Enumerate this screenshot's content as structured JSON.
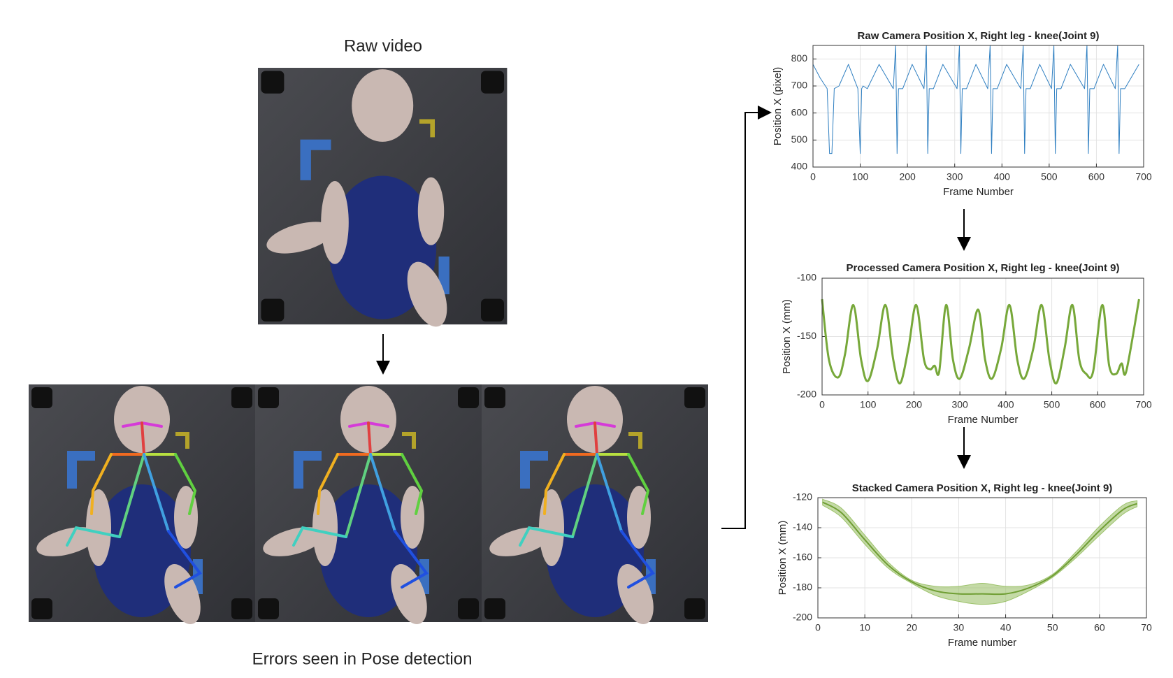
{
  "labels": {
    "raw_video": "Raw video",
    "errors": "Errors seen in Pose detection"
  },
  "chart_data": [
    {
      "type": "line",
      "title": "Raw Camera Position X, Right leg - knee(Joint 9)",
      "x_label": "Frame Number",
      "y_label": "Position X  (pixel)",
      "color": "#2f7fc1",
      "grid": true,
      "xlim": [
        0,
        700
      ],
      "xticks": [
        0,
        100,
        200,
        300,
        400,
        500,
        600,
        700
      ],
      "ylim": [
        400,
        850
      ],
      "yticks": [
        400,
        500,
        600,
        700,
        800
      ],
      "x": [
        0,
        15,
        30,
        35,
        40,
        45,
        55,
        75,
        95,
        100,
        103,
        106,
        115,
        140,
        170,
        175,
        178,
        181,
        190,
        210,
        235,
        240,
        243,
        246,
        255,
        275,
        305,
        310,
        313,
        316,
        325,
        345,
        370,
        375,
        378,
        381,
        390,
        410,
        440,
        445,
        448,
        451,
        460,
        480,
        505,
        510,
        513,
        516,
        525,
        545,
        575,
        580,
        583,
        586,
        595,
        615,
        640,
        645,
        648,
        651,
        660,
        690
      ],
      "values": [
        780,
        730,
        690,
        450,
        450,
        690,
        700,
        780,
        690,
        450,
        690,
        700,
        690,
        780,
        690,
        850,
        450,
        690,
        690,
        780,
        690,
        850,
        450,
        690,
        690,
        780,
        690,
        850,
        450,
        690,
        690,
        780,
        690,
        850,
        450,
        690,
        690,
        780,
        690,
        850,
        450,
        690,
        690,
        780,
        690,
        850,
        450,
        690,
        690,
        780,
        690,
        850,
        450,
        690,
        690,
        780,
        690,
        850,
        450,
        690,
        690,
        780
      ]
    },
    {
      "type": "line",
      "title": "Processed Camera Position X, Right leg - knee(Joint 9)",
      "x_label": "Frame Number",
      "y_label": "Position X  (mm)",
      "color": "#77a83a",
      "grid": true,
      "xlim": [
        0,
        700
      ],
      "xticks": [
        0,
        100,
        200,
        300,
        400,
        500,
        600,
        700
      ],
      "ylim": [
        -200,
        -100
      ],
      "yticks": [
        -200,
        -150,
        -100
      ],
      "x": [
        0,
        15,
        35,
        50,
        68,
        85,
        100,
        120,
        138,
        155,
        170,
        188,
        205,
        222,
        235,
        245,
        255,
        270,
        285,
        300,
        320,
        340,
        355,
        370,
        390,
        408,
        425,
        440,
        460,
        478,
        495,
        510,
        528,
        545,
        560,
        575,
        590,
        610,
        625,
        640,
        652,
        662,
        690
      ],
      "values": [
        -118,
        -170,
        -185,
        -165,
        -123,
        -170,
        -188,
        -160,
        -123,
        -170,
        -190,
        -160,
        -123,
        -170,
        -178,
        -175,
        -180,
        -123,
        -170,
        -186,
        -160,
        -127,
        -170,
        -186,
        -160,
        -123,
        -170,
        -186,
        -160,
        -123,
        -170,
        -190,
        -160,
        -123,
        -170,
        -182,
        -180,
        -123,
        -175,
        -182,
        -173,
        -180,
        -118
      ]
    },
    {
      "type": "line",
      "title": "Stacked Camera Position X, Right leg - knee(Joint 9)",
      "x_label": "Frame number",
      "y_label": "Position X (mm)",
      "color": "#6f9e33",
      "band_color": "#9cc26a",
      "grid": true,
      "xlim": [
        0,
        70
      ],
      "xticks": [
        0,
        10,
        20,
        30,
        40,
        50,
        60,
        70
      ],
      "ylim": [
        -200,
        -120
      ],
      "yticks": [
        -200,
        -180,
        -160,
        -140,
        -120
      ],
      "x": [
        1,
        5,
        10,
        15,
        20,
        25,
        30,
        35,
        40,
        45,
        50,
        55,
        60,
        65,
        68
      ],
      "values": [
        -123,
        -130,
        -148,
        -165,
        -176,
        -182,
        -184,
        -184,
        -184,
        -180,
        -172,
        -158,
        -142,
        -128,
        -124
      ],
      "lower": [
        -125,
        -133,
        -151,
        -167,
        -177,
        -185,
        -189,
        -191,
        -189,
        -182,
        -173,
        -160,
        -145,
        -131,
        -126
      ],
      "upper": [
        -121,
        -127,
        -145,
        -163,
        -175,
        -179,
        -179,
        -177,
        -179,
        -178,
        -171,
        -156,
        -139,
        -125,
        -122
      ]
    }
  ]
}
